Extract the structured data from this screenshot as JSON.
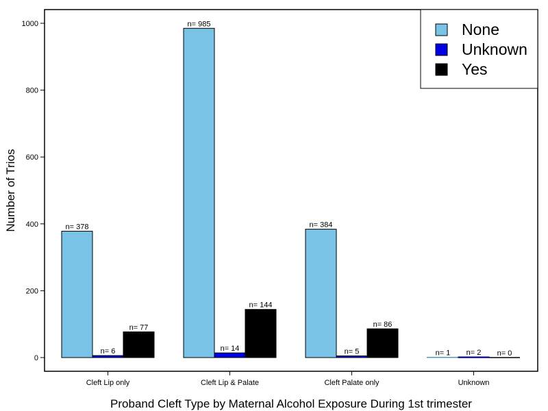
{
  "chart_data": {
    "type": "bar",
    "title": "",
    "xlabel": "Proband Cleft Type by Maternal Alcohol Exposure During 1st trimester",
    "ylabel": "Number of Trios",
    "ylim": [
      0,
      1000
    ],
    "yticks": [
      0,
      200,
      400,
      600,
      800,
      1000
    ],
    "grid": false,
    "legend_position": "top-right",
    "categories": [
      "Cleft Lip only",
      "Cleft Lip & Palate",
      "Cleft Palate only",
      "Unknown"
    ],
    "series": [
      {
        "name": "None",
        "color": "#78c3e6",
        "values": [
          378,
          985,
          384,
          1
        ],
        "labels": [
          "n= 378",
          "n= 985",
          "n= 384",
          "n= 1"
        ]
      },
      {
        "name": "Unknown",
        "color": "#0000e0",
        "values": [
          6,
          14,
          5,
          2
        ],
        "labels": [
          "n= 6",
          "n= 14",
          "n= 5",
          "n= 2"
        ]
      },
      {
        "name": "Yes",
        "color": "#000000",
        "values": [
          77,
          144,
          86,
          0
        ],
        "labels": [
          "n= 77",
          "n= 144",
          "n= 86",
          "n= 0"
        ]
      }
    ]
  }
}
